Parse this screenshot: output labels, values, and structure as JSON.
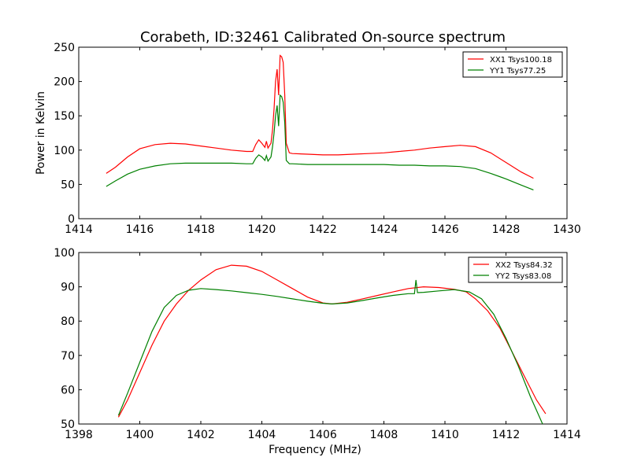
{
  "figure": {
    "title": "Corabeth, ID:32461 Calibrated On-source spectrum"
  },
  "chart_data": [
    {
      "type": "line",
      "title": "Corabeth, ID:32461 Calibrated On-source spectrum",
      "xlabel": "",
      "ylabel": "Power in Kelvin",
      "xlim": [
        1414,
        1430
      ],
      "ylim": [
        0,
        250
      ],
      "xticks": [
        1414,
        1416,
        1418,
        1420,
        1422,
        1424,
        1426,
        1428,
        1430
      ],
      "yticks": [
        0,
        50,
        100,
        150,
        200,
        250
      ],
      "grid": false,
      "legend_position": "top-right",
      "series": [
        {
          "name": "XX1 Tsys100.18",
          "color": "#ff0000",
          "x": [
            1414.9,
            1415.2,
            1415.6,
            1416.0,
            1416.5,
            1417.0,
            1417.5,
            1418.0,
            1418.5,
            1419.0,
            1419.5,
            1419.7,
            1419.8,
            1419.9,
            1420.0,
            1420.1,
            1420.15,
            1420.2,
            1420.3,
            1420.35,
            1420.4,
            1420.45,
            1420.5,
            1420.55,
            1420.6,
            1420.65,
            1420.7,
            1420.75,
            1420.8,
            1420.9,
            1421.0,
            1421.5,
            1422.0,
            1422.5,
            1423.0,
            1423.5,
            1424.0,
            1424.5,
            1425.0,
            1425.5,
            1426.0,
            1426.5,
            1427.0,
            1427.5,
            1428.0,
            1428.5,
            1428.9
          ],
          "y": [
            66,
            75,
            90,
            102,
            108,
            110,
            109,
            106,
            103,
            100,
            98,
            98,
            108,
            115,
            110,
            104,
            113,
            103,
            110,
            130,
            160,
            200,
            218,
            180,
            238,
            236,
            228,
            180,
            110,
            96,
            95,
            94,
            93,
            93,
            94,
            95,
            96,
            98,
            100,
            103,
            105,
            107,
            105,
            96,
            82,
            68,
            59
          ]
        },
        {
          "name": "YY1 Tsys77.25",
          "color": "#008000",
          "x": [
            1414.9,
            1415.2,
            1415.6,
            1416.0,
            1416.5,
            1417.0,
            1417.5,
            1418.0,
            1418.5,
            1419.0,
            1419.5,
            1419.7,
            1419.8,
            1419.9,
            1420.0,
            1420.1,
            1420.15,
            1420.2,
            1420.3,
            1420.35,
            1420.4,
            1420.45,
            1420.5,
            1420.55,
            1420.6,
            1420.65,
            1420.7,
            1420.75,
            1420.8,
            1420.9,
            1421.0,
            1421.5,
            1422.0,
            1422.5,
            1423.0,
            1423.5,
            1424.0,
            1424.5,
            1425.0,
            1425.5,
            1426.0,
            1426.5,
            1427.0,
            1427.5,
            1428.0,
            1428.5,
            1428.9
          ],
          "y": [
            47,
            55,
            65,
            72,
            77,
            80,
            81,
            81,
            81,
            81,
            80,
            80,
            88,
            93,
            90,
            85,
            92,
            84,
            90,
            105,
            125,
            150,
            165,
            135,
            180,
            178,
            170,
            140,
            85,
            80,
            80,
            79,
            79,
            79,
            79,
            79,
            79,
            78,
            78,
            77,
            77,
            76,
            73,
            66,
            58,
            49,
            42
          ]
        }
      ]
    },
    {
      "type": "line",
      "title": "",
      "xlabel": "Frequency (MHz)",
      "ylabel": "",
      "xlim": [
        1398,
        1414
      ],
      "ylim": [
        50,
        100
      ],
      "xticks": [
        1398,
        1400,
        1402,
        1404,
        1406,
        1408,
        1410,
        1412,
        1414
      ],
      "yticks": [
        50,
        60,
        70,
        80,
        90,
        100
      ],
      "grid": false,
      "legend_position": "top-right",
      "series": [
        {
          "name": "XX2 Tsys84.32",
          "color": "#ff0000",
          "x": [
            1399.3,
            1399.6,
            1400.0,
            1400.4,
            1400.8,
            1401.2,
            1401.6,
            1402.0,
            1402.5,
            1403.0,
            1403.5,
            1404.0,
            1404.5,
            1405.0,
            1405.5,
            1406.0,
            1406.3,
            1406.8,
            1407.3,
            1407.8,
            1408.3,
            1408.8,
            1409.3,
            1409.8,
            1410.3,
            1410.7,
            1411.0,
            1411.4,
            1411.8,
            1412.2,
            1412.6,
            1413.0,
            1413.3
          ],
          "y": [
            52,
            57,
            65,
            73,
            80,
            85,
            89,
            92,
            95,
            96.3,
            96,
            94.5,
            92,
            89.5,
            87,
            85.3,
            85,
            85.5,
            86.5,
            87.5,
            88.5,
            89.5,
            90,
            89.8,
            89.3,
            88.5,
            86.5,
            83,
            78,
            71,
            64,
            57,
            53
          ]
        },
        {
          "name": "YY2 Tsys83.08",
          "color": "#008000",
          "x": [
            1399.3,
            1399.6,
            1400.0,
            1400.4,
            1400.8,
            1401.2,
            1401.6,
            1402.0,
            1402.5,
            1403.0,
            1403.5,
            1404.0,
            1404.5,
            1405.0,
            1405.5,
            1406.0,
            1406.3,
            1406.8,
            1407.3,
            1407.8,
            1408.3,
            1408.8,
            1409.0,
            1409.05,
            1409.1,
            1409.3,
            1409.8,
            1410.3,
            1410.8,
            1411.2,
            1411.6,
            1412.0,
            1412.4,
            1412.8,
            1413.2
          ],
          "y": [
            52.5,
            59,
            68,
            77,
            84,
            87.5,
            89,
            89.5,
            89.2,
            88.8,
            88.3,
            87.8,
            87.2,
            86.5,
            85.8,
            85.2,
            85,
            85.3,
            86,
            86.8,
            87.5,
            88,
            88,
            92,
            88.3,
            88.4,
            88.8,
            89.2,
            88.5,
            86.5,
            82,
            75,
            67,
            58,
            50
          ]
        }
      ]
    }
  ]
}
